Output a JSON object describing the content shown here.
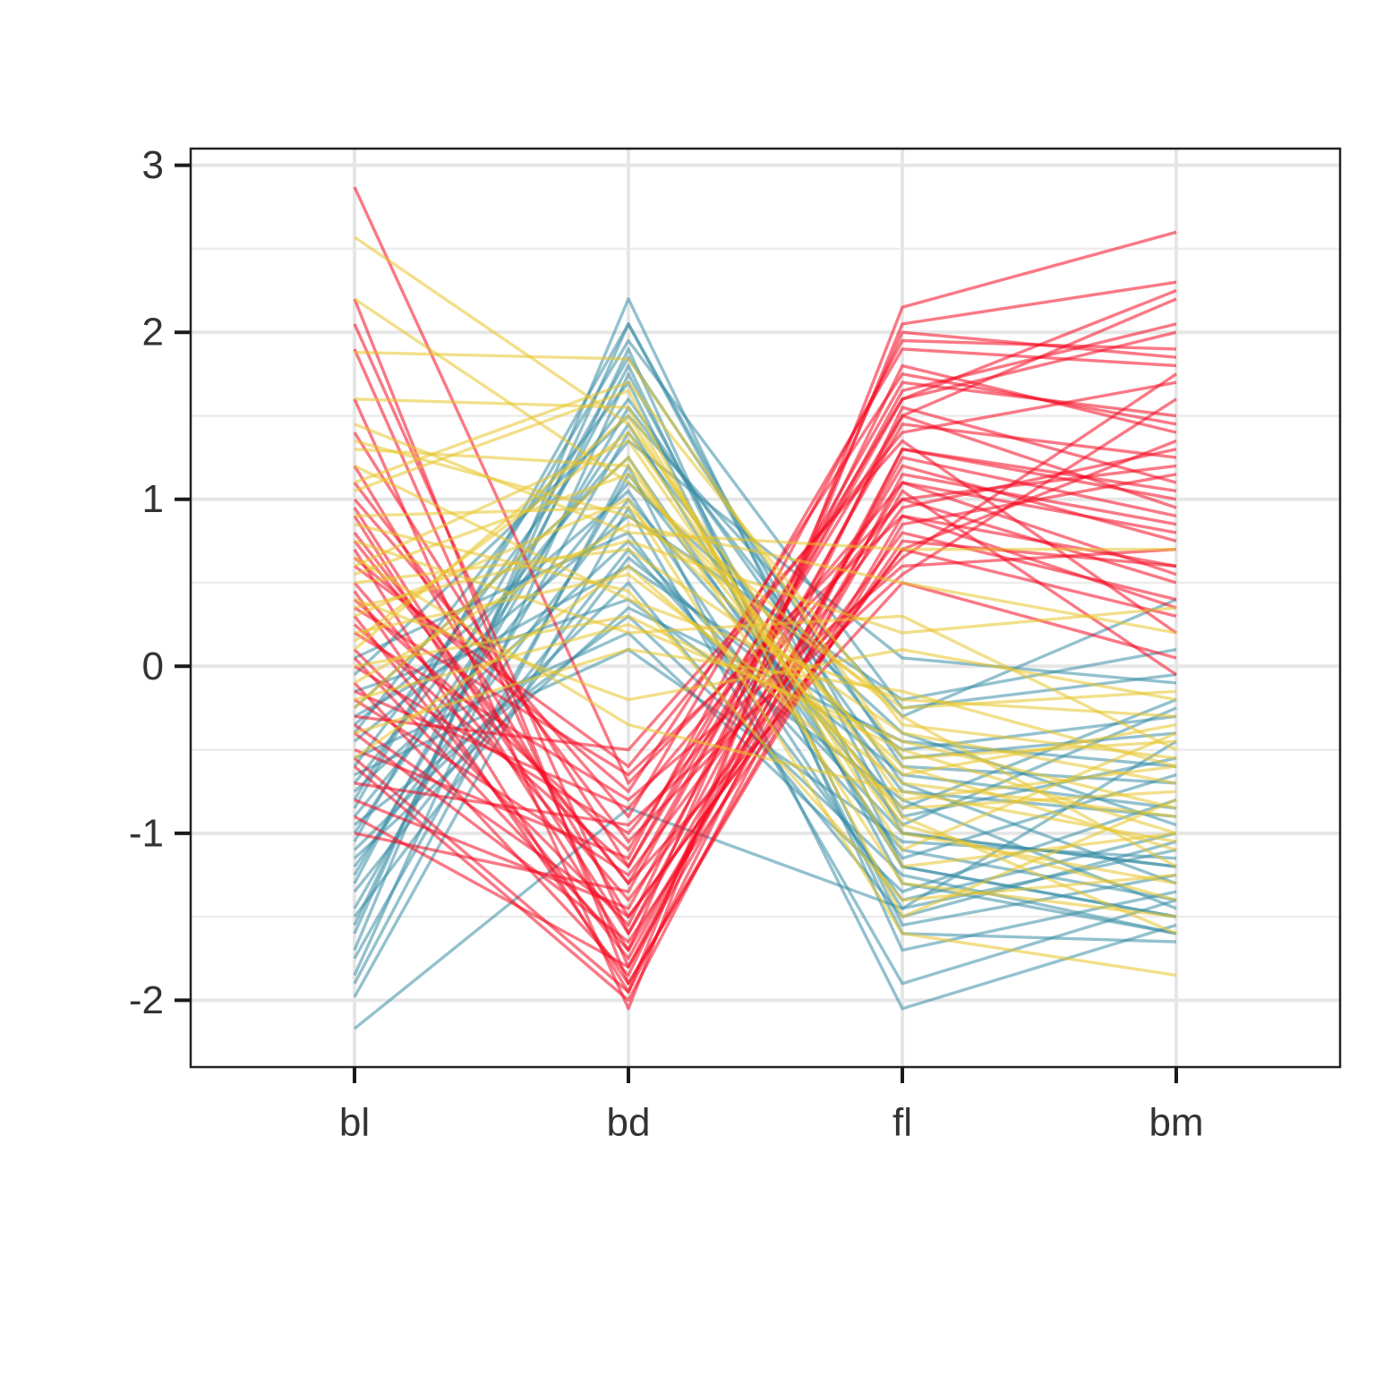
{
  "chart_data": {
    "type": "line",
    "subtype": "parallel-coordinates",
    "title": "",
    "xlabel": "",
    "ylabel": "",
    "categories": [
      "bl",
      "bd",
      "fl",
      "bm"
    ],
    "ylim": [
      -2.4,
      3.1
    ],
    "yticks": [
      -2,
      -1,
      0,
      1,
      2,
      3
    ],
    "ytick_labels": [
      "-2",
      "-1",
      "0",
      "1",
      "2",
      "3"
    ],
    "grid": true,
    "legend": "none",
    "colors": {
      "group_a": "#f50a20",
      "group_b": "#3b8ea5",
      "group_c": "#e8c52a"
    },
    "series": [
      {
        "group": "group_b",
        "values": [
          -2.17,
          -0.85,
          -1.45,
          -1.1
        ]
      },
      {
        "group": "group_b",
        "values": [
          -1.98,
          0.95,
          -1.9,
          -1.4
        ]
      },
      {
        "group": "group_b",
        "values": [
          -1.9,
          1.2,
          -2.05,
          -1.55
        ]
      },
      {
        "group": "group_b",
        "values": [
          -1.85,
          1.75,
          -1.3,
          -1.6
        ]
      },
      {
        "group": "group_b",
        "values": [
          -1.7,
          2.2,
          -1.2,
          -1.5
        ]
      },
      {
        "group": "group_b",
        "values": [
          -1.6,
          2.05,
          -1.0,
          -1.2
        ]
      },
      {
        "group": "group_b",
        "values": [
          -1.55,
          1.9,
          -1.7,
          -1.35
        ]
      },
      {
        "group": "group_b",
        "values": [
          -1.45,
          1.4,
          -0.75,
          -0.9
        ]
      },
      {
        "group": "group_b",
        "values": [
          -1.35,
          0.7,
          -1.1,
          -1.4
        ]
      },
      {
        "group": "group_b",
        "values": [
          -1.25,
          1.55,
          -0.55,
          -0.4
        ]
      },
      {
        "group": "group_b",
        "values": [
          -1.2,
          1.0,
          -0.85,
          -0.2
        ]
      },
      {
        "group": "group_b",
        "values": [
          -1.1,
          0.5,
          -1.5,
          -1.05
        ]
      },
      {
        "group": "group_b",
        "values": [
          -1.05,
          1.85,
          -0.6,
          -0.7
        ]
      },
      {
        "group": "group_b",
        "values": [
          -0.95,
          0.3,
          -1.25,
          -1.6
        ]
      },
      {
        "group": "group_b",
        "values": [
          -0.9,
          1.1,
          -0.4,
          -0.95
        ]
      },
      {
        "group": "group_b",
        "values": [
          -0.85,
          2.05,
          -0.9,
          -0.55
        ]
      },
      {
        "group": "group_b",
        "values": [
          -0.75,
          0.75,
          -1.0,
          -1.2
        ]
      },
      {
        "group": "group_b",
        "values": [
          -0.7,
          1.35,
          0.05,
          -0.1
        ]
      },
      {
        "group": "group_b",
        "values": [
          -0.6,
          1.6,
          -0.7,
          -1.3
        ]
      },
      {
        "group": "group_b",
        "values": [
          -0.55,
          0.2,
          -1.35,
          -0.8
        ]
      },
      {
        "group": "group_b",
        "values": [
          -0.45,
          0.9,
          -0.2,
          0.1
        ]
      },
      {
        "group": "group_b",
        "values": [
          -0.4,
          1.7,
          -1.6,
          -1.65
        ]
      },
      {
        "group": "group_b",
        "values": [
          -0.3,
          0.6,
          -0.5,
          -0.3
        ]
      },
      {
        "group": "group_b",
        "values": [
          -0.25,
          1.25,
          -1.15,
          -0.65
        ]
      },
      {
        "group": "group_b",
        "values": [
          -0.15,
          0.4,
          -0.8,
          -1.45
        ]
      },
      {
        "group": "group_b",
        "values": [
          -0.05,
          1.5,
          -0.3,
          0.4
        ]
      },
      {
        "group": "group_b",
        "values": [
          0.05,
          0.8,
          -1.4,
          -1.0
        ]
      },
      {
        "group": "group_b",
        "values": [
          -1.75,
          1.15,
          -0.95,
          -0.25
        ]
      },
      {
        "group": "group_b",
        "values": [
          -1.5,
          0.65,
          -0.65,
          -0.85
        ]
      },
      {
        "group": "group_b",
        "values": [
          -1.3,
          1.8,
          -1.55,
          -1.25
        ]
      },
      {
        "group": "group_b",
        "values": [
          -1.15,
          0.35,
          -0.45,
          -0.6
        ]
      },
      {
        "group": "group_b",
        "values": [
          -1.0,
          1.45,
          -1.2,
          -1.5
        ]
      },
      {
        "group": "group_b",
        "values": [
          -0.8,
          1.95,
          -0.25,
          -0.05
        ]
      },
      {
        "group": "group_b",
        "values": [
          -0.65,
          0.1,
          -1.05,
          -1.15
        ]
      },
      {
        "group": "group_b",
        "values": [
          -0.35,
          1.05,
          -1.45,
          -0.45
        ]
      },
      {
        "group": "group_a",
        "values": [
          2.87,
          -0.7,
          1.0,
          1.2
        ]
      },
      {
        "group": "group_a",
        "values": [
          2.2,
          -1.9,
          0.9,
          0.6
        ]
      },
      {
        "group": "group_a",
        "values": [
          2.05,
          -1.6,
          1.5,
          2.2
        ]
      },
      {
        "group": "group_a",
        "values": [
          1.9,
          -1.8,
          1.3,
          1.0
        ]
      },
      {
        "group": "group_a",
        "values": [
          1.6,
          -2.05,
          2.15,
          2.6
        ]
      },
      {
        "group": "group_a",
        "values": [
          1.4,
          -1.2,
          1.7,
          1.5
        ]
      },
      {
        "group": "group_a",
        "values": [
          1.2,
          -1.5,
          0.7,
          0.3
        ]
      },
      {
        "group": "group_a",
        "values": [
          1.0,
          -0.9,
          1.9,
          1.8
        ]
      },
      {
        "group": "group_a",
        "values": [
          0.9,
          -1.7,
          1.1,
          0.8
        ]
      },
      {
        "group": "group_a",
        "values": [
          0.8,
          -1.3,
          0.5,
          0.05
        ]
      },
      {
        "group": "group_a",
        "values": [
          0.7,
          -1.95,
          2.05,
          2.3
        ]
      },
      {
        "group": "group_a",
        "values": [
          0.6,
          -0.6,
          1.4,
          1.7
        ]
      },
      {
        "group": "group_a",
        "values": [
          0.5,
          -1.4,
          0.8,
          0.4
        ]
      },
      {
        "group": "group_a",
        "values": [
          0.4,
          -1.1,
          1.6,
          2.0
        ]
      },
      {
        "group": "group_a",
        "values": [
          0.3,
          -1.75,
          1.25,
          0.9
        ]
      },
      {
        "group": "group_a",
        "values": [
          0.2,
          -0.8,
          0.6,
          0.7
        ]
      },
      {
        "group": "group_a",
        "values": [
          0.1,
          -1.55,
          1.8,
          1.4
        ]
      },
      {
        "group": "group_a",
        "values": [
          0.0,
          -1.0,
          1.0,
          0.5
        ]
      },
      {
        "group": "group_a",
        "values": [
          -0.1,
          -1.85,
          1.55,
          1.1
        ]
      },
      {
        "group": "group_a",
        "values": [
          -0.2,
          -1.25,
          0.95,
          1.3
        ]
      },
      {
        "group": "group_a",
        "values": [
          -0.3,
          -0.5,
          1.35,
          0.2
        ]
      },
      {
        "group": "group_a",
        "values": [
          -0.4,
          -1.65,
          0.75,
          0.6
        ]
      },
      {
        "group": "group_a",
        "values": [
          -0.5,
          -1.15,
          1.95,
          1.9
        ]
      },
      {
        "group": "group_a",
        "values": [
          -0.6,
          -2.0,
          1.15,
          0.85
        ]
      },
      {
        "group": "group_a",
        "values": [
          -0.7,
          -0.95,
          0.55,
          1.6
        ]
      },
      {
        "group": "group_a",
        "values": [
          -0.8,
          -1.45,
          1.45,
          1.25
        ]
      },
      {
        "group": "group_a",
        "values": [
          -0.9,
          -1.8,
          1.05,
          -0.05
        ]
      },
      {
        "group": "group_a",
        "values": [
          -1.0,
          -1.35,
          1.65,
          2.05
        ]
      },
      {
        "group": "group_a",
        "values": [
          1.1,
          -1.05,
          0.65,
          1.75
        ]
      },
      {
        "group": "group_a",
        "values": [
          0.95,
          -1.6,
          1.2,
          0.75
        ]
      },
      {
        "group": "group_a",
        "values": [
          0.65,
          -0.75,
          1.75,
          1.45
        ]
      },
      {
        "group": "group_a",
        "values": [
          0.45,
          -1.9,
          0.85,
          1.15
        ]
      },
      {
        "group": "group_a",
        "values": [
          0.25,
          -1.2,
          1.5,
          0.95
        ]
      },
      {
        "group": "group_a",
        "values": [
          0.05,
          -1.7,
          2.0,
          1.85
        ]
      },
      {
        "group": "group_a",
        "values": [
          -0.15,
          -0.85,
          1.1,
          0.55
        ]
      },
      {
        "group": "group_a",
        "values": [
          -0.35,
          -1.5,
          0.7,
          1.35
        ]
      },
      {
        "group": "group_a",
        "values": [
          -0.55,
          -1.95,
          1.3,
          1.05
        ]
      },
      {
        "group": "group_a",
        "values": [
          0.75,
          -1.3,
          1.6,
          2.25
        ]
      },
      {
        "group": "group_a",
        "values": [
          0.35,
          -0.65,
          0.9,
          0.35
        ]
      },
      {
        "group": "group_c",
        "values": [
          2.57,
          1.45,
          -0.8,
          -0.6
        ]
      },
      {
        "group": "group_c",
        "values": [
          2.2,
          1.1,
          -0.3,
          -1.2
        ]
      },
      {
        "group": "group_c",
        "values": [
          1.88,
          1.84,
          -0.55,
          -0.45
        ]
      },
      {
        "group": "group_c",
        "values": [
          1.6,
          1.55,
          -1.2,
          -1.0
        ]
      },
      {
        "group": "group_c",
        "values": [
          1.45,
          0.8,
          0.7,
          0.7
        ]
      },
      {
        "group": "group_c",
        "values": [
          1.3,
          1.2,
          -0.9,
          -1.6
        ]
      },
      {
        "group": "group_c",
        "values": [
          1.2,
          0.4,
          -0.2,
          -0.3
        ]
      },
      {
        "group": "group_c",
        "values": [
          1.05,
          1.65,
          -1.5,
          -0.8
        ]
      },
      {
        "group": "group_c",
        "values": [
          0.9,
          0.95,
          -0.6,
          -1.1
        ]
      },
      {
        "group": "group_c",
        "values": [
          0.75,
          0.2,
          0.3,
          -0.5
        ]
      },
      {
        "group": "group_c",
        "values": [
          0.6,
          1.35,
          -1.0,
          -1.3
        ]
      },
      {
        "group": "group_c",
        "values": [
          0.5,
          0.7,
          -0.4,
          -0.7
        ]
      },
      {
        "group": "group_c",
        "values": [
          0.4,
          -0.2,
          0.1,
          -0.2
        ]
      },
      {
        "group": "group_c",
        "values": [
          0.3,
          1.0,
          -1.6,
          -1.85
        ]
      },
      {
        "group": "group_c",
        "values": [
          0.2,
          0.55,
          -0.7,
          -0.9
        ]
      },
      {
        "group": "group_c",
        "values": [
          0.1,
          1.5,
          -1.1,
          -0.4
        ]
      },
      {
        "group": "group_c",
        "values": [
          0.0,
          0.3,
          -0.5,
          -1.0
        ]
      },
      {
        "group": "group_c",
        "values": [
          -0.1,
          0.85,
          0.5,
          0.2
        ]
      },
      {
        "group": "group_c",
        "values": [
          -0.25,
          1.25,
          -1.3,
          -1.5
        ]
      },
      {
        "group": "group_c",
        "values": [
          -0.4,
          0.1,
          -0.15,
          -0.6
        ]
      },
      {
        "group": "group_c",
        "values": [
          -0.55,
          0.6,
          -0.85,
          -0.75
        ]
      },
      {
        "group": "group_c",
        "values": [
          1.1,
          1.7,
          -0.35,
          -0.55
        ]
      },
      {
        "group": "group_c",
        "values": [
          0.85,
          0.45,
          -1.4,
          -1.25
        ]
      },
      {
        "group": "group_c",
        "values": [
          0.55,
          1.15,
          -0.65,
          -0.35
        ]
      },
      {
        "group": "group_c",
        "values": [
          0.35,
          0.75,
          0.2,
          0.35
        ]
      },
      {
        "group": "group_c",
        "values": [
          0.15,
          1.4,
          -0.95,
          -1.4
        ]
      },
      {
        "group": "group_c",
        "values": [
          -0.2,
          0.25,
          -0.45,
          -0.85
        ]
      },
      {
        "group": "group_c",
        "values": [
          1.35,
          0.9,
          -0.25,
          -0.15
        ]
      },
      {
        "group": "group_c",
        "values": [
          0.65,
          -0.35,
          -0.75,
          -1.05
        ]
      }
    ]
  }
}
